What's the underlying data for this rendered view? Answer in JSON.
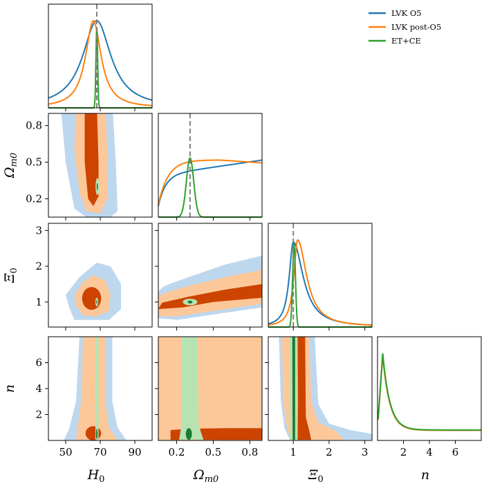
{
  "chart_data": {
    "type": "corner",
    "parameters": [
      {
        "id": "H0",
        "label": "H",
        "sub": "0",
        "range": [
          40,
          100
        ],
        "ticks": [
          50,
          70,
          90
        ],
        "truth": 68
      },
      {
        "id": "Om",
        "label": "Ω",
        "sub": "m0",
        "range": [
          0.05,
          0.9
        ],
        "ticks": [
          0.2,
          0.5,
          0.8
        ],
        "truth": 0.31
      },
      {
        "id": "Xi",
        "label": "Ξ",
        "sub": "0",
        "range": [
          0.3,
          3.2
        ],
        "ticks": [
          1,
          2,
          3
        ],
        "truth": 1.0
      },
      {
        "id": "n",
        "label": "n",
        "sub": "",
        "range": [
          0,
          8
        ],
        "ticks": [
          2,
          4,
          6
        ],
        "truth": null
      }
    ],
    "series": [
      {
        "name": "LVK O5",
        "color": "#1f77b4",
        "fill_inner": "#cc4400",
        "fill_outer": "#bdd7ee"
      },
      {
        "name": "LVK post-O5",
        "color": "#ff7f0e",
        "fill_inner": "#cc4400",
        "fill_outer": "#fdc899"
      },
      {
        "name": "ET+CE",
        "color": "#2ca02c",
        "fill_inner": "#1e7b33",
        "fill_outer": "#b7e3b3"
      }
    ],
    "marginals": {
      "H0": {
        "LVK O5": {
          "mu": 68,
          "sigma": 10,
          "kind": "cauchy"
        },
        "LVK post-O5": {
          "mu": 66,
          "sigma": 5.5,
          "kind": "cauchy"
        },
        "ET+CE": {
          "mu": 68,
          "sigma": 0.5,
          "kind": "gauss"
        }
      },
      "Om": {
        "LVK O5": {
          "kind": "rising",
          "level": 1.0
        },
        "LVK post-O5": {
          "kind": "plateau"
        },
        "ET+CE": {
          "mu": 0.31,
          "sigma": 0.03,
          "kind": "gauss"
        }
      },
      "Xi": {
        "LVK O5": {
          "mu": 1.0,
          "sigma": 0.22,
          "kind": "skew"
        },
        "LVK post-O5": {
          "mu": 1.12,
          "sigma": 0.2,
          "kind": "skew"
        },
        "ET+CE": {
          "mu": 1.02,
          "sigma": 0.04,
          "kind": "gauss"
        }
      },
      "n": {
        "LVK O5": {
          "kind": "decay"
        },
        "LVK post-O5": {
          "kind": "decay"
        },
        "ET+CE": {
          "kind": "decay"
        }
      }
    },
    "legend_position": "top-right"
  }
}
